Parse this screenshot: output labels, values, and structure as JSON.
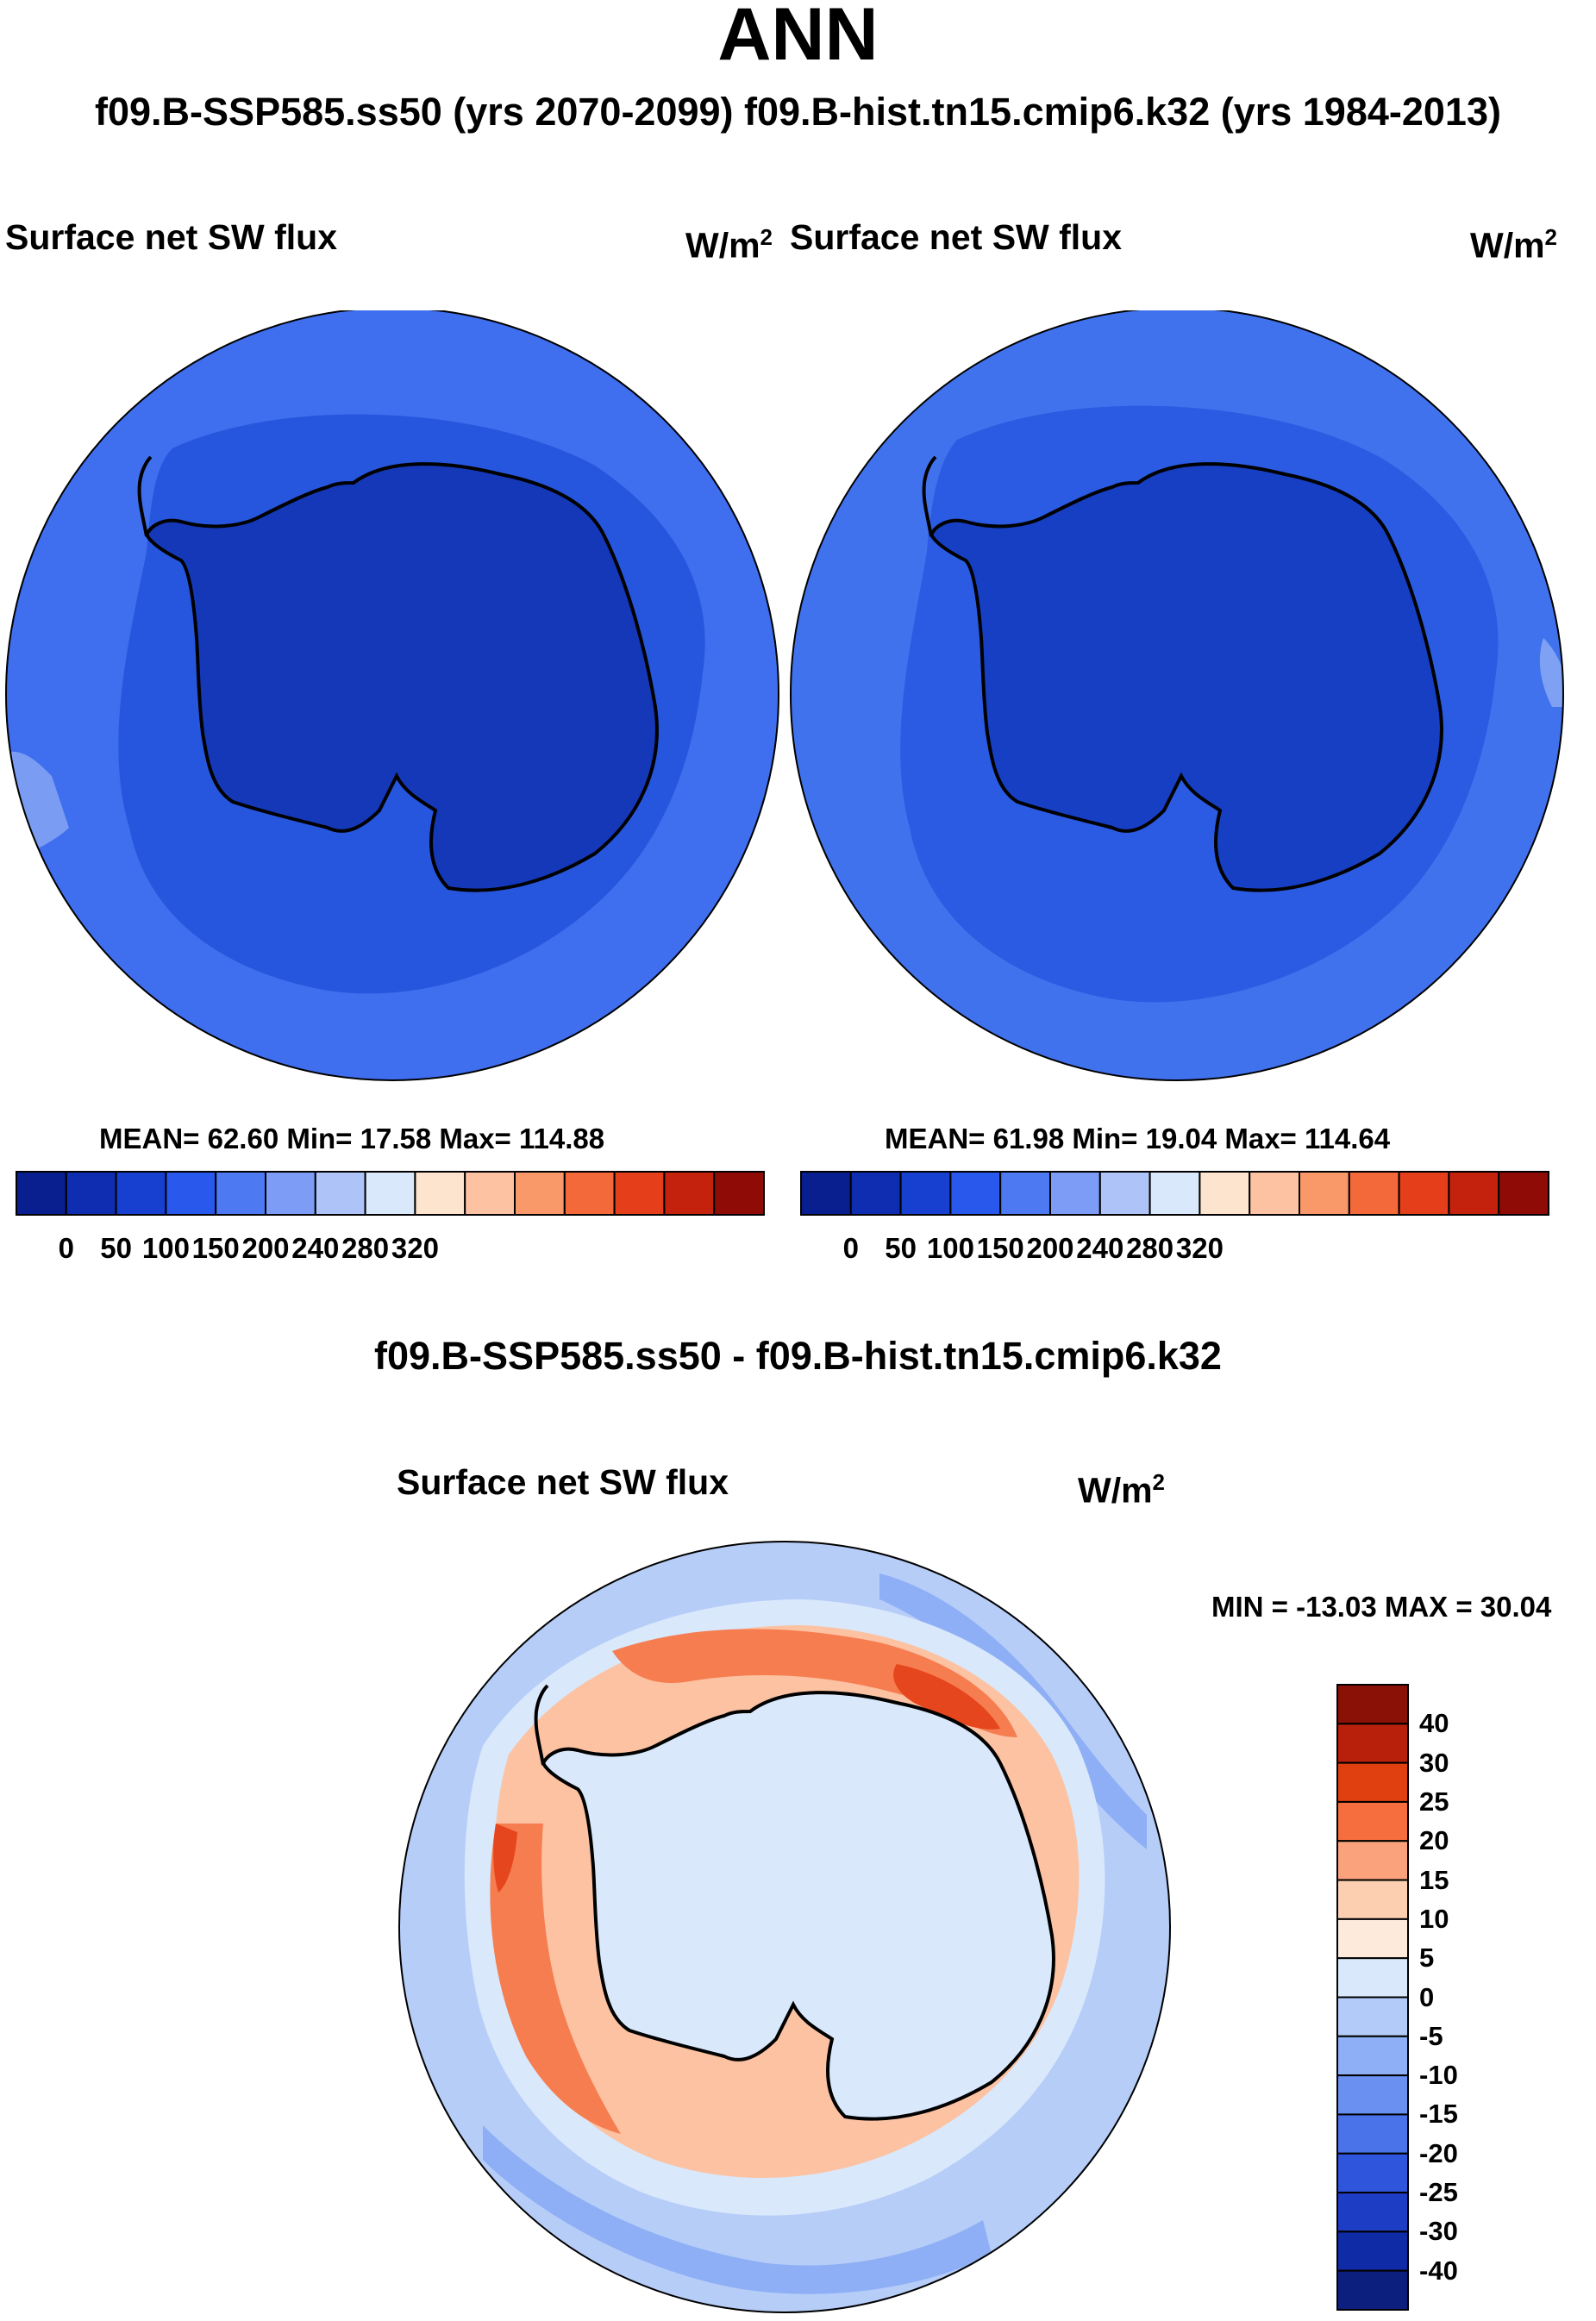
{
  "figure": {
    "title": "ANN",
    "subtitle": "f09.B-SSP585.ss50 (yrs 2070-2099)  f09.B-hist.tn15.cmip6.k32 (yrs 1984-2013)",
    "difference_title": "f09.B-SSP585.ss50 - f09.B-hist.tn15.cmip6.k32"
  },
  "panels": [
    {
      "variable": "Surface net SW flux",
      "units_base": "W/m",
      "units_exp": "2",
      "stats": "MEAN=  62.60  Min=  17.58  Max= 114.88"
    },
    {
      "variable": "Surface net SW flux",
      "units_base": "W/m",
      "units_exp": "2",
      "stats": "MEAN=  61.98  Min=  19.04  Max= 114.64"
    },
    {
      "variable": "Surface net SW flux",
      "units_base": "W/m",
      "units_exp": "2",
      "stats": "MIN = -13.03 MAX =  30.04"
    }
  ],
  "colorbars": {
    "absolute": {
      "colors": [
        "#0a1f8f",
        "#0f2db0",
        "#1840d0",
        "#2958ec",
        "#4d7af2",
        "#7d9cf5",
        "#aec4f8",
        "#dae8fb",
        "#fde4cf",
        "#fcc2a2",
        "#f99868",
        "#f3693a",
        "#e43e1a",
        "#c4220d",
        "#8e0b06"
      ],
      "tick_labels": [
        "0",
        "50",
        "100",
        "150",
        "200",
        "240",
        "280",
        "320"
      ]
    },
    "difference": {
      "colors": [
        "#8a1106",
        "#b8200c",
        "#e0400f",
        "#f66e3d",
        "#faa27b",
        "#fccfb0",
        "#fdeadb",
        "#d9e8fb",
        "#b3cbf8",
        "#8eaff5",
        "#6a91f1",
        "#4a73ea",
        "#2f55dc",
        "#1d3dc4",
        "#102ba6",
        "#0c1f7e"
      ],
      "tick_labels": [
        "40",
        "30",
        "25",
        "20",
        "15",
        "10",
        "5",
        "0",
        "-5",
        "-10",
        "-15",
        "-20",
        "-25",
        "-30",
        "-40"
      ]
    }
  },
  "maps": {
    "panel1": {
      "ocean_outer": "#3f6eee",
      "ocean_inner": "#2656dd",
      "continent": "#1438b8",
      "highlight": "#7a9cf3"
    },
    "panel2": {
      "ocean_outer": "#4172ee",
      "ocean_inner": "#2a5be2",
      "continent": "#173fc4",
      "highlight": "#7fa1f4"
    },
    "panel3": {
      "ocean_outer": "#b6cdf8",
      "ring": "#fcc2a2",
      "ring_strong": "#f67d50",
      "peak": "#e6461d",
      "continent": "#d9e8fb",
      "blue_streak": "#8eaff5"
    }
  }
}
